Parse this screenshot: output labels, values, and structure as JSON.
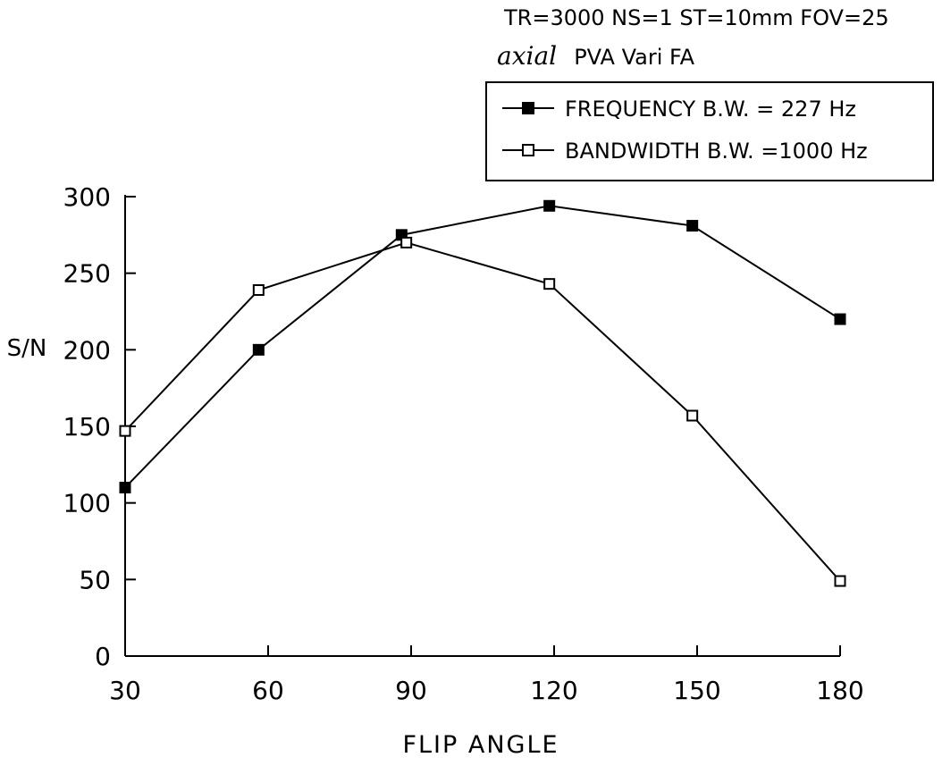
{
  "chart_data": {
    "type": "line",
    "header": {
      "line1": "TR=3000  NS=1  ST=10mm  FOV=25",
      "line2_prefix": "axial",
      "line2_rest": "PVA  Vari FA"
    },
    "title": "",
    "xlabel": "FLIP ANGLE",
    "ylabel": "S/N",
    "xlim": [
      30,
      180
    ],
    "ylim": [
      0,
      300
    ],
    "x_ticks": [
      30,
      60,
      90,
      120,
      150,
      180
    ],
    "y_ticks": [
      0,
      50,
      100,
      150,
      200,
      250,
      300
    ],
    "grid": false,
    "legend_position": "top-right",
    "series": [
      {
        "name": "FREQUENCY  B.W. = 227 Hz",
        "marker": "filled-square",
        "x": [
          30,
          58,
          88,
          119,
          149,
          180
        ],
        "y": [
          110,
          200,
          275,
          294,
          281,
          220
        ]
      },
      {
        "name": "BANDWIDTH  B.W. =1000 Hz",
        "marker": "open-square",
        "x": [
          30,
          58,
          89,
          119,
          149,
          180
        ],
        "y": [
          147,
          239,
          270,
          243,
          157,
          49
        ]
      }
    ]
  }
}
